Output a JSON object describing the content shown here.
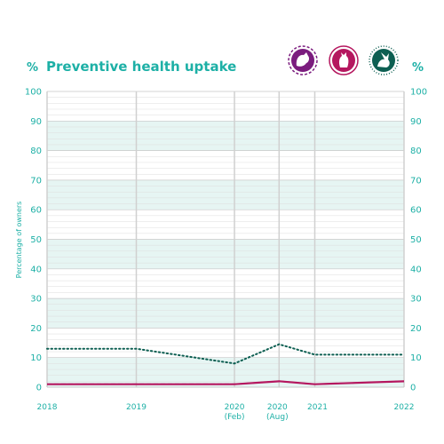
{
  "chart_data": {
    "type": "line",
    "title": "Preventive health uptake",
    "unit_left": "%",
    "unit_right": "%",
    "ylabel": "Percentage of owners",
    "ylim": [
      0,
      100
    ],
    "yticks": [
      0,
      10,
      20,
      30,
      40,
      50,
      60,
      70,
      80,
      90,
      100
    ],
    "x": [
      2018,
      2019,
      2020.1,
      2020.6,
      2021,
      2022
    ],
    "x_labels": [
      {
        "main": "2018",
        "sub": ""
      },
      {
        "main": "2019",
        "sub": ""
      },
      {
        "main": "2020",
        "sub": "(Feb)"
      },
      {
        "main": "2020",
        "sub": "(Aug)"
      },
      {
        "main": "2021",
        "sub": ""
      },
      {
        "main": "2022",
        "sub": ""
      }
    ],
    "series": [
      {
        "icon": "dog-icon",
        "color": "#7b1c7e",
        "style": "dashed",
        "values": [
          1,
          1,
          1,
          2,
          1,
          2
        ]
      },
      {
        "icon": "cat-icon",
        "color": "#b5175f",
        "style": "solid",
        "values": [
          1,
          1,
          1,
          2,
          1,
          2
        ]
      },
      {
        "icon": "rabbit-icon",
        "color": "#0d5f52",
        "style": "dotted",
        "values": [
          13,
          13,
          8,
          14.5,
          11,
          11
        ]
      }
    ],
    "band_color": "#e6f5f3",
    "grid": true
  }
}
